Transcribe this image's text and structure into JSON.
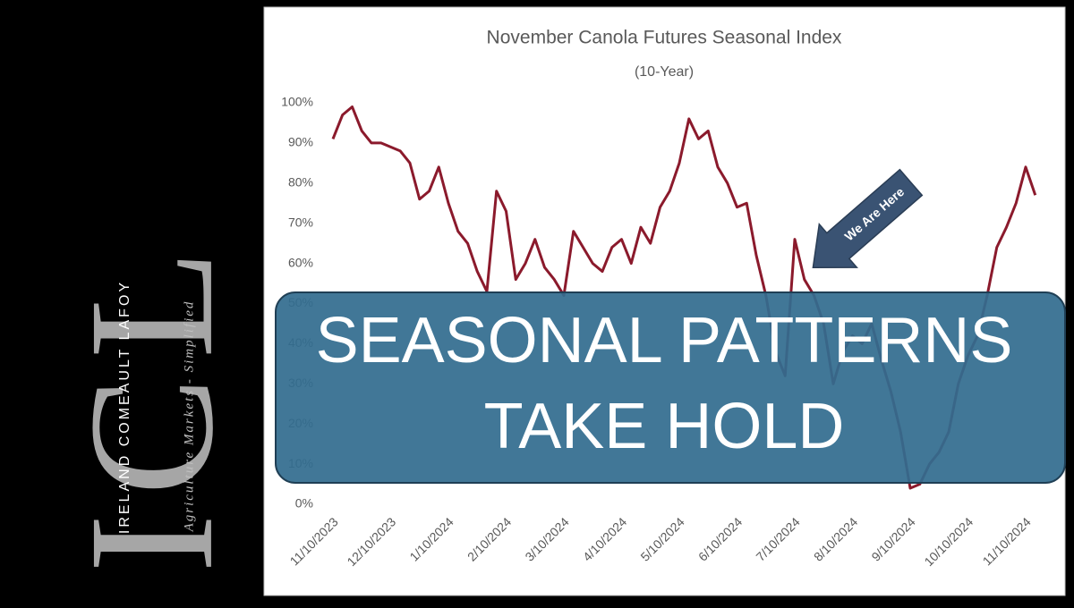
{
  "chart_data": {
    "type": "line",
    "title": "November Canola Futures Seasonal Index",
    "subtitle": "(10-Year)",
    "categories": [
      "11/10/2023",
      null,
      null,
      null,
      null,
      null,
      "12/10/2023",
      null,
      null,
      null,
      null,
      null,
      "1/10/2024",
      null,
      null,
      null,
      null,
      null,
      "2/10/2024",
      null,
      null,
      null,
      null,
      null,
      "3/10/2024",
      null,
      null,
      null,
      null,
      null,
      "4/10/2024",
      null,
      null,
      null,
      null,
      null,
      "5/10/2024",
      null,
      null,
      null,
      null,
      null,
      "6/10/2024",
      null,
      null,
      null,
      null,
      null,
      "7/10/2024",
      null,
      null,
      null,
      null,
      null,
      "8/10/2024",
      null,
      null,
      null,
      null,
      null,
      "9/10/2024",
      null,
      null,
      null,
      null,
      null,
      "10/10/2024",
      null,
      null,
      null,
      null,
      null,
      "11/10/2024",
      null
    ],
    "series": [
      {
        "name": "Seasonal Index",
        "color": "#8b1a2c",
        "values": [
          91,
          97,
          99,
          93,
          90,
          90,
          89,
          88,
          85,
          76,
          78,
          84,
          75,
          68,
          65,
          58,
          53,
          78,
          73,
          56,
          60,
          66,
          59,
          56,
          52,
          68,
          64,
          60,
          58,
          64,
          66,
          60,
          69,
          65,
          74,
          78,
          85,
          96,
          91,
          93,
          84,
          80,
          74,
          75,
          62,
          52,
          38,
          32,
          66,
          56,
          52,
          45,
          30,
          38,
          42,
          40,
          45,
          36,
          28,
          18,
          4,
          5,
          10,
          13,
          18,
          30,
          37,
          42,
          52,
          64,
          69,
          75,
          84,
          77
        ]
      }
    ],
    "ylim": [
      0,
      100
    ],
    "yticks": [
      {
        "value": 0,
        "label": "0%"
      },
      {
        "value": 10,
        "label": "10%"
      },
      {
        "value": 20,
        "label": "20%"
      },
      {
        "value": 30,
        "label": "30%"
      },
      {
        "value": 40,
        "label": "40%"
      },
      {
        "value": 50,
        "label": "50%"
      },
      {
        "value": 60,
        "label": "60%"
      },
      {
        "value": 70,
        "label": "70%"
      },
      {
        "value": 80,
        "label": "80%"
      },
      {
        "value": 90,
        "label": "90%"
      },
      {
        "value": 100,
        "label": "100%"
      }
    ],
    "grid": false,
    "annotations": {
      "arrow": "We Are Here",
      "banner_line1": "SEASONAL PATTERNS",
      "banner_line2": "TAKE HOLD"
    },
    "logo": {
      "mark": "ICL",
      "name": "IRELAND COMEAULT LAFOY",
      "tagline": "Agriculture Markets - Simplified"
    }
  }
}
